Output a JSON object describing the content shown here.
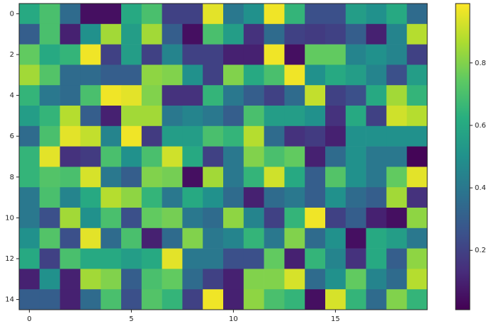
{
  "chart_data": {
    "type": "heatmap",
    "colormap": "viridis",
    "clim": [
      0.01,
      0.99
    ],
    "xlim": [
      -0.5,
      19.5
    ],
    "ylim": [
      14.5,
      -0.5
    ],
    "xticks": [
      0,
      5,
      10,
      15
    ],
    "yticks": [
      0,
      2,
      4,
      6,
      8,
      10,
      12,
      14
    ],
    "colorbar_ticks": [
      0.2,
      0.4,
      0.6,
      0.8
    ],
    "values": [
      [
        0.6,
        0.7,
        0.35,
        0.05,
        0.05,
        0.6,
        0.7,
        0.2,
        0.2,
        0.95,
        0.4,
        0.5,
        0.97,
        0.65,
        0.25,
        0.25,
        0.55,
        0.5,
        0.6,
        0.35
      ],
      [
        0.3,
        0.7,
        0.1,
        0.5,
        0.85,
        0.55,
        0.85,
        0.3,
        0.05,
        0.7,
        0.55,
        0.15,
        0.35,
        0.2,
        0.18,
        0.2,
        0.3,
        0.1,
        0.45,
        0.88
      ],
      [
        0.75,
        0.6,
        0.65,
        0.97,
        0.2,
        0.55,
        0.2,
        0.45,
        0.2,
        0.2,
        0.1,
        0.1,
        0.97,
        0.05,
        0.75,
        0.75,
        0.45,
        0.5,
        0.45,
        0.2
      ],
      [
        0.85,
        0.72,
        0.35,
        0.35,
        0.3,
        0.3,
        0.82,
        0.8,
        0.5,
        0.2,
        0.8,
        0.6,
        0.7,
        0.97,
        0.5,
        0.6,
        0.55,
        0.45,
        0.25,
        0.55
      ],
      [
        0.65,
        0.4,
        0.35,
        0.7,
        0.97,
        0.95,
        0.8,
        0.15,
        0.15,
        0.65,
        0.4,
        0.3,
        0.2,
        0.35,
        0.9,
        0.2,
        0.25,
        0.6,
        0.85,
        0.65
      ],
      [
        0.55,
        0.65,
        0.88,
        0.3,
        0.1,
        0.85,
        0.85,
        0.4,
        0.45,
        0.4,
        0.3,
        0.7,
        0.55,
        0.55,
        0.5,
        0.15,
        0.6,
        0.2,
        0.92,
        0.88
      ],
      [
        0.35,
        0.7,
        0.95,
        0.9,
        0.45,
        0.97,
        0.18,
        0.55,
        0.55,
        0.7,
        0.65,
        0.88,
        0.35,
        0.15,
        0.18,
        0.1,
        0.5,
        0.5,
        0.5,
        0.5
      ],
      [
        0.65,
        0.95,
        0.15,
        0.18,
        0.7,
        0.5,
        0.7,
        0.92,
        0.6,
        0.2,
        0.4,
        0.8,
        0.7,
        0.75,
        0.1,
        0.35,
        0.5,
        0.4,
        0.4,
        0.02
      ],
      [
        0.65,
        0.72,
        0.7,
        0.93,
        0.4,
        0.3,
        0.8,
        0.78,
        0.05,
        0.85,
        0.4,
        0.65,
        0.92,
        0.6,
        0.3,
        0.72,
        0.5,
        0.4,
        0.75,
        0.95
      ],
      [
        0.4,
        0.7,
        0.45,
        0.6,
        0.88,
        0.82,
        0.65,
        0.4,
        0.6,
        0.5,
        0.35,
        0.1,
        0.35,
        0.4,
        0.3,
        0.5,
        0.35,
        0.3,
        0.85,
        0.15
      ],
      [
        0.4,
        0.25,
        0.85,
        0.5,
        0.7,
        0.25,
        0.75,
        0.78,
        0.4,
        0.35,
        0.82,
        0.45,
        0.2,
        0.65,
        0.97,
        0.2,
        0.3,
        0.1,
        0.05,
        0.82
      ],
      [
        0.5,
        0.72,
        0.25,
        0.95,
        0.35,
        0.7,
        0.1,
        0.35,
        0.8,
        0.4,
        0.45,
        0.65,
        0.4,
        0.8,
        0.35,
        0.5,
        0.05,
        0.6,
        0.55,
        0.4
      ],
      [
        0.6,
        0.2,
        0.7,
        0.6,
        0.6,
        0.55,
        0.6,
        0.95,
        0.4,
        0.4,
        0.25,
        0.25,
        0.75,
        0.1,
        0.65,
        0.45,
        0.15,
        0.6,
        0.3,
        0.82
      ],
      [
        0.1,
        0.5,
        0.1,
        0.85,
        0.8,
        0.3,
        0.7,
        0.75,
        0.35,
        0.2,
        0.1,
        0.8,
        0.8,
        0.93,
        0.35,
        0.5,
        0.75,
        0.45,
        0.35,
        0.88
      ],
      [
        0.3,
        0.3,
        0.1,
        0.35,
        0.7,
        0.25,
        0.72,
        0.65,
        0.2,
        0.97,
        0.1,
        0.82,
        0.7,
        0.65,
        0.05,
        0.93,
        0.65,
        0.35,
        0.8,
        0.65
      ]
    ]
  }
}
